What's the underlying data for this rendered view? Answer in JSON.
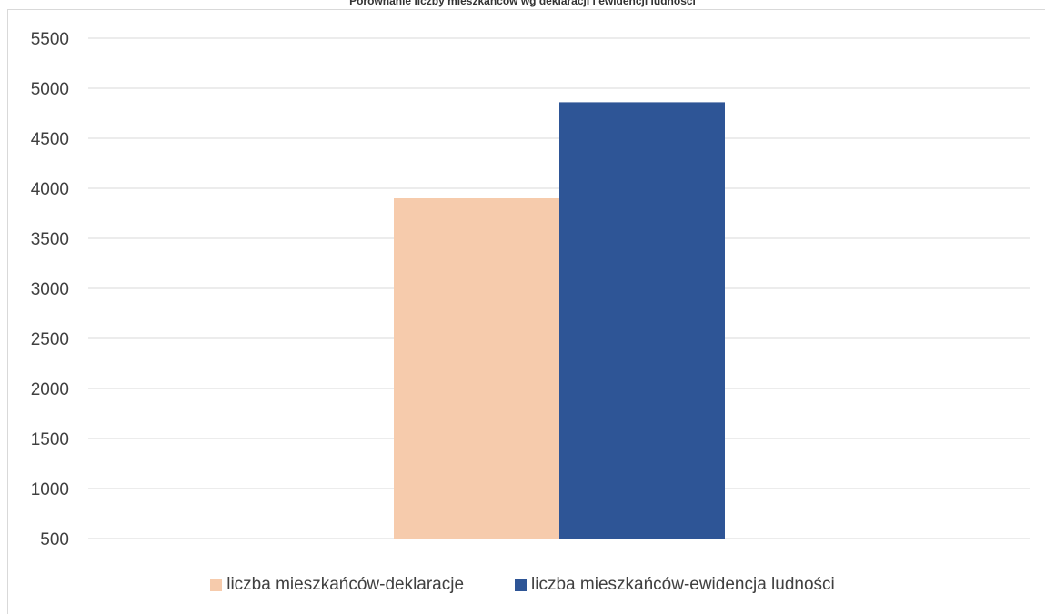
{
  "chart_data": {
    "type": "bar",
    "title": "Porównanie liczby mieszkańców wg deklaracji i ewidencji ludności",
    "categories": [
      ""
    ],
    "series": [
      {
        "name": "liczba mieszkańców-deklaracje",
        "color": "#F6CBAC",
        "values": [
          3900
        ]
      },
      {
        "name": "liczba mieszkańców-ewidencja ludności",
        "color": "#2E5596",
        "values": [
          4860
        ]
      }
    ],
    "xlabel": "",
    "ylabel": "",
    "ylim": [
      500,
      5500
    ],
    "yticks": [
      500,
      1000,
      1500,
      2000,
      2500,
      3000,
      3500,
      4000,
      4500,
      5000,
      5500
    ],
    "grid": true,
    "legend_position": "bottom"
  }
}
